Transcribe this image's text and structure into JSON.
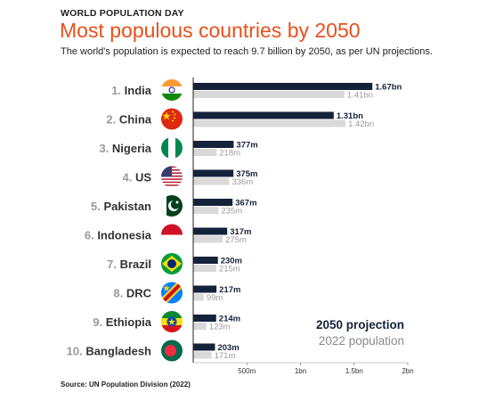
{
  "header": {
    "kicker": "WORLD POPULATION DAY",
    "title": "Most populous countries by 2050",
    "subtitle": "The world's population is expected to reach 9.7 billion by 2050, as per UN projections."
  },
  "source": "Source: UN Population Division (2022)",
  "legend": {
    "series_2050": "2050 projection",
    "series_2022": "2022 population"
  },
  "colors": {
    "bar_2050": "#14223a",
    "bar_2022": "#d9d9d9",
    "title": "#e8501a"
  },
  "chart_data": {
    "type": "bar",
    "orientation": "horizontal",
    "categories": [
      "India",
      "China",
      "Nigeria",
      "US",
      "Pakistan",
      "Indonesia",
      "Brazil",
      "DRC",
      "Ethiopia",
      "Bangladesh"
    ],
    "ranks": [
      "1.",
      "2.",
      "3.",
      "4.",
      "5.",
      "6.",
      "7.",
      "8.",
      "9.",
      "10."
    ],
    "flags": [
      "india-flag",
      "china-flag",
      "nigeria-flag",
      "us-flag",
      "pakistan-flag",
      "indonesia-flag",
      "brazil-flag",
      "drc-flag",
      "ethiopia-flag",
      "bangladesh-flag"
    ],
    "series": [
      {
        "name": "2050 projection",
        "values": [
          1670,
          1310,
          377,
          375,
          367,
          317,
          230,
          217,
          214,
          203
        ],
        "labels": [
          "1.67bn",
          "1.31bn",
          "377m",
          "375m",
          "367m",
          "317m",
          "230m",
          "217m",
          "214m",
          "203m"
        ]
      },
      {
        "name": "2022 population",
        "values": [
          1410,
          1420,
          218,
          336,
          235,
          275,
          215,
          99,
          123,
          171
        ],
        "labels": [
          "1.41bn",
          "1.42bn",
          "218m",
          "336m",
          "235m",
          "275m",
          "215m",
          "99m",
          "123m",
          "171m"
        ]
      }
    ],
    "xlim": [
      0,
      2000
    ],
    "xticks": [
      500,
      1000,
      1500,
      2000
    ],
    "xtick_labels": [
      "500m",
      "1bn",
      "1.5bn",
      "2bn"
    ],
    "legend_position": "bottom-right",
    "grid": false
  }
}
